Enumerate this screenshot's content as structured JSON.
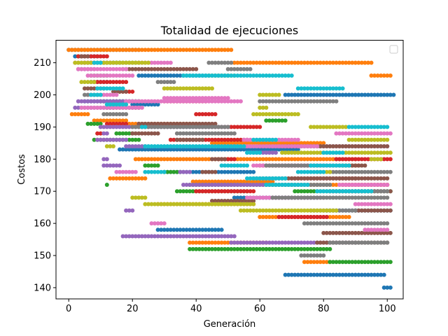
{
  "chart_data": {
    "type": "scatter",
    "title": "Totalidad de ejecuciones",
    "xlabel": "Generación",
    "ylabel": "Costos",
    "xlim": [
      -4,
      105
    ],
    "ylim": [
      136.5,
      217
    ],
    "xticks": [
      0,
      20,
      40,
      60,
      80,
      100
    ],
    "yticks": [
      140,
      150,
      160,
      170,
      180,
      190,
      200,
      210
    ],
    "grid": false,
    "legend": "top-right (empty)",
    "palette": [
      "#1f77b4",
      "#ff7f0e",
      "#2ca02c",
      "#d62728",
      "#9467bd",
      "#8c564b",
      "#e377c2",
      "#7f7f7f",
      "#bcbd22",
      "#17becf"
    ],
    "series": [
      {
        "segments": [
          [
            0,
            214,
            22
          ],
          [
            7,
            210,
            16
          ],
          [
            7,
            204,
            12
          ],
          [
            22,
            206,
            50
          ],
          [
            68,
            200,
            102
          ],
          [
            20,
            197,
            28
          ],
          [
            2,
            212,
            9
          ],
          [
            5,
            198,
            22
          ],
          [
            16,
            183,
            72
          ],
          [
            30,
            176,
            58
          ],
          [
            52,
            168,
            78
          ],
          [
            81,
            164,
            101
          ],
          [
            28,
            158,
            48
          ],
          [
            68,
            144,
            99
          ],
          [
            99,
            140,
            101
          ]
        ]
      },
      {
        "segments": [
          [
            0,
            214,
            51
          ],
          [
            5,
            210,
            8
          ],
          [
            52,
            210,
            95
          ],
          [
            95,
            206,
            101
          ],
          [
            1,
            194,
            6
          ],
          [
            8,
            192,
            18
          ],
          [
            18,
            191,
            40
          ],
          [
            45,
            185,
            80
          ],
          [
            21,
            180,
            90
          ],
          [
            13,
            174,
            24
          ],
          [
            39,
            173,
            64
          ],
          [
            70,
            172,
            100
          ],
          [
            28,
            166,
            58
          ],
          [
            60,
            162,
            88
          ],
          [
            38,
            154,
            62
          ],
          [
            74,
            148,
            82
          ],
          [
            86,
            178,
            91
          ]
        ]
      },
      {
        "segments": [
          [
            3,
            212,
            5
          ],
          [
            10,
            210,
            22
          ],
          [
            7,
            206,
            12
          ],
          [
            10,
            198,
            22
          ],
          [
            6,
            191,
            10
          ],
          [
            15,
            188,
            20
          ],
          [
            8,
            186,
            22
          ],
          [
            30,
            176,
            35
          ],
          [
            38,
            172,
            70
          ],
          [
            34,
            170,
            56
          ],
          [
            71,
            170,
            101
          ],
          [
            38,
            152,
            82
          ],
          [
            82,
            148,
            101
          ],
          [
            62,
            192,
            68
          ],
          [
            24,
            178,
            28
          ],
          [
            12,
            172,
            12
          ]
        ]
      },
      {
        "segments": [
          [
            3,
            212,
            12
          ],
          [
            8,
            204,
            18
          ],
          [
            16,
            201,
            20
          ],
          [
            30,
            198,
            43
          ],
          [
            40,
            194,
            46
          ],
          [
            12,
            191,
            18
          ],
          [
            40,
            190,
            60
          ],
          [
            32,
            186,
            56
          ],
          [
            47,
            180,
            52
          ],
          [
            60,
            178,
            80
          ],
          [
            84,
            180,
            101
          ],
          [
            70,
            174,
            90
          ],
          [
            86,
            172,
            100
          ],
          [
            40,
            170,
            58
          ],
          [
            66,
            162,
            81
          ],
          [
            9,
            188,
            10
          ]
        ]
      },
      {
        "segments": [
          [
            5,
            210,
            7
          ],
          [
            3,
            208,
            8
          ],
          [
            3,
            198,
            20
          ],
          [
            2,
            196,
            14
          ],
          [
            11,
            188,
            12
          ],
          [
            9,
            186,
            18
          ],
          [
            10,
            190,
            50
          ],
          [
            18,
            184,
            24
          ],
          [
            11,
            180,
            12
          ],
          [
            58,
            182,
            65
          ],
          [
            68,
            184,
            100
          ],
          [
            36,
            172,
            75
          ],
          [
            60,
            168,
            70
          ],
          [
            18,
            164,
            20
          ],
          [
            17,
            156,
            52
          ],
          [
            51,
            154,
            90
          ],
          [
            11,
            178,
            16
          ],
          [
            35,
            176,
            38
          ]
        ]
      },
      {
        "segments": [
          [
            4,
            212,
            6
          ],
          [
            17,
            208,
            40
          ],
          [
            5,
            202,
            11
          ],
          [
            14,
            201,
            18
          ],
          [
            12,
            196,
            22
          ],
          [
            22,
            191,
            46
          ],
          [
            20,
            188,
            28
          ],
          [
            34,
            186,
            42
          ],
          [
            60,
            184,
            100
          ],
          [
            45,
            180,
            49
          ],
          [
            68,
            178,
            93
          ],
          [
            58,
            174,
            100
          ],
          [
            82,
            170,
            101
          ],
          [
            45,
            167,
            58
          ],
          [
            90,
            164,
            101
          ],
          [
            80,
            157,
            101
          ],
          [
            78,
            154,
            100
          ],
          [
            42,
            176,
            46
          ]
        ]
      },
      {
        "segments": [
          [
            2,
            210,
            13
          ],
          [
            3,
            208,
            18
          ],
          [
            6,
            206,
            20
          ],
          [
            22,
            210,
            32
          ],
          [
            6,
            200,
            15
          ],
          [
            30,
            199,
            50
          ],
          [
            18,
            198,
            54
          ],
          [
            4,
            196,
            23
          ],
          [
            84,
            188,
            101
          ],
          [
            55,
            186,
            72
          ],
          [
            50,
            184,
            78
          ],
          [
            58,
            178,
            84
          ],
          [
            15,
            176,
            21
          ],
          [
            85,
            172,
            100
          ],
          [
            56,
            168,
            80
          ],
          [
            90,
            166,
            101
          ],
          [
            93,
            158,
            100
          ],
          [
            26,
            160,
            30
          ]
        ]
      },
      {
        "segments": [
          [
            44,
            210,
            51
          ],
          [
            50,
            208,
            57
          ],
          [
            5,
            200,
            10
          ],
          [
            28,
            204,
            33
          ],
          [
            60,
            198,
            84
          ],
          [
            11,
            194,
            18
          ],
          [
            20,
            190,
            50
          ],
          [
            34,
            188,
            52
          ],
          [
            62,
            178,
            78
          ],
          [
            82,
            176,
            101
          ],
          [
            62,
            172,
            82
          ],
          [
            82,
            170,
            100
          ],
          [
            64,
            168,
            100
          ],
          [
            76,
            164,
            90
          ],
          [
            74,
            160,
            100
          ],
          [
            73,
            150,
            80
          ],
          [
            82,
            154,
            100
          ]
        ]
      },
      {
        "segments": [
          [
            2,
            210,
            25
          ],
          [
            30,
            202,
            45
          ],
          [
            44,
            206,
            52
          ],
          [
            4,
            204,
            8
          ],
          [
            60,
            200,
            66
          ],
          [
            60,
            196,
            62
          ],
          [
            58,
            194,
            72
          ],
          [
            76,
            190,
            87
          ],
          [
            88,
            186,
            100
          ],
          [
            67,
            182,
            101
          ],
          [
            20,
            168,
            24
          ],
          [
            24,
            166,
            58
          ],
          [
            54,
            164,
            84
          ],
          [
            78,
            176,
            82
          ],
          [
            95,
            180,
            98
          ],
          [
            12,
            184,
            14
          ]
        ]
      },
      {
        "segments": [
          [
            8,
            210,
            10
          ],
          [
            9,
            202,
            17
          ],
          [
            72,
            202,
            86
          ],
          [
            7,
            200,
            10
          ],
          [
            12,
            197,
            18
          ],
          [
            23,
            190,
            24
          ],
          [
            24,
            184,
            55
          ],
          [
            58,
            186,
            65
          ],
          [
            56,
            182,
            60
          ],
          [
            80,
            182,
            86
          ],
          [
            76,
            178,
            88
          ],
          [
            24,
            176,
            30
          ],
          [
            72,
            176,
            80
          ],
          [
            56,
            174,
            68
          ],
          [
            62,
            172,
            75
          ],
          [
            78,
            170,
            95
          ],
          [
            88,
            190,
            100
          ],
          [
            48,
            178,
            56
          ],
          [
            36,
            206,
            70
          ]
        ]
      }
    ]
  }
}
